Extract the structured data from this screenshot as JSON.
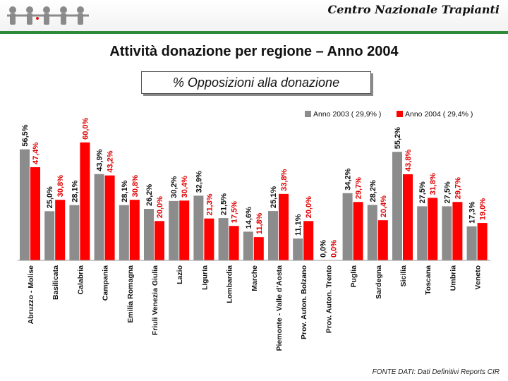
{
  "header": {
    "org": "Centro Nazionale Trapianti"
  },
  "page": {
    "title": "Attività donazione per regione – Anno 2004",
    "subtitle": "% Opposizioni alla donazione",
    "source": "FONTE DATI: Dati Definitivi Reports CIR"
  },
  "colors": {
    "series_2003": "#8c8c8c",
    "series_2004": "#ff0000",
    "accent": "#2f8b3a"
  },
  "chart_data": {
    "type": "bar",
    "title": "% Opposizioni alla donazione",
    "xlabel": "",
    "ylabel": "",
    "ylim": [
      0,
      70
    ],
    "grid": false,
    "legend": "top-right",
    "categories": [
      "Abruzzo - Molise",
      "Basilicata",
      "Calabria",
      "Campania",
      "Emilia Romagna",
      "Friuli Venezia Giulia",
      "Lazio",
      "Liguria",
      "Lombardia",
      "Marche",
      "Piemonte - Valle d'Aosta",
      "Prov. Auton. Bolzano",
      "Prov. Auton. Trento",
      "Puglia",
      "Sardegna",
      "Sicilia",
      "Toscana",
      "Umbria",
      "Veneto"
    ],
    "series": [
      {
        "name": "Anno 2003 ( 29,9% )",
        "color": "#8c8c8c",
        "values": [
          56.5,
          25.0,
          28.1,
          43.9,
          28.1,
          26.2,
          30.2,
          32.9,
          21.5,
          14.6,
          25.1,
          11.1,
          0.0,
          34.2,
          28.2,
          55.2,
          27.5,
          27.5,
          17.3
        ],
        "labels": [
          "56,5%",
          "25,0%",
          "28,1%",
          "43,9%",
          "28,1%",
          "26,2%",
          "30,2%",
          "32,9%",
          "21,5%",
          "14,6%",
          "25,1%",
          "11,1%",
          "0,0%",
          "34,2%",
          "28,2%",
          "55,2%",
          "27,5%",
          "27,5%",
          "17,3%"
        ]
      },
      {
        "name": "Anno 2004 ( 29,4% )",
        "color": "#ff0000",
        "values": [
          47.4,
          30.8,
          60.0,
          43.2,
          30.8,
          20.0,
          30.4,
          21.3,
          17.5,
          11.8,
          33.8,
          20.0,
          0.0,
          29.7,
          20.4,
          43.8,
          31.8,
          29.7,
          19.0
        ],
        "labels": [
          "47,4%",
          "30,8%",
          "60,0%",
          "43,2%",
          "30,8%",
          "20,0%",
          "30,4%",
          "21,3%",
          "17,5%",
          "11,8%",
          "33,8%",
          "20,0%",
          "0,0%",
          "29,7%",
          "20,4%",
          "43,8%",
          "31,8%",
          "29,7%",
          "19,0%"
        ]
      }
    ]
  }
}
